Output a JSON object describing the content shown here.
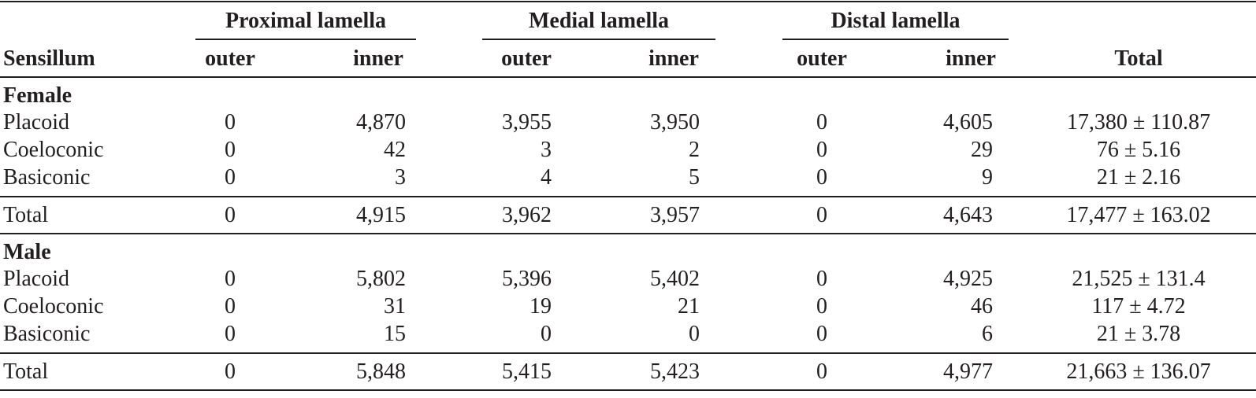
{
  "table": {
    "header": {
      "first_column": "Sensillum",
      "groups": [
        {
          "label": "Proximal lamella",
          "columns": [
            "outer",
            "inner"
          ]
        },
        {
          "label": "Medial lamella",
          "columns": [
            "outer",
            "inner"
          ]
        },
        {
          "label": "Distal lamella",
          "columns": [
            "outer",
            "inner"
          ]
        }
      ],
      "last_column": "Total"
    },
    "sections": [
      {
        "label": "Female",
        "rows": [
          [
            "Placoid",
            "0",
            "4,870",
            "3,955",
            "3,950",
            "0",
            "4,605",
            "17,380 ± 110.87"
          ],
          [
            "Coeloconic",
            "0",
            "42",
            "3",
            "2",
            "0",
            "29",
            "76 ± 5.16"
          ],
          [
            "Basiconic",
            "0",
            "3",
            "4",
            "5",
            "0",
            "9",
            "21 ± 2.16"
          ]
        ],
        "total": [
          "Total",
          "0",
          "4,915",
          "3,962",
          "3,957",
          "0",
          "4,643",
          "17,477 ± 163.02"
        ]
      },
      {
        "label": "Male",
        "rows": [
          [
            "Placoid",
            "0",
            "5,802",
            "5,396",
            "5,402",
            "0",
            "4,925",
            "21,525 ± 131.4"
          ],
          [
            "Coeloconic",
            "0",
            "31",
            "19",
            "21",
            "0",
            "46",
            "117 ± 4.72"
          ],
          [
            "Basiconic",
            "0",
            "15",
            "0",
            "0",
            "0",
            "6",
            "21 ± 3.78"
          ]
        ],
        "total": [
          "Total",
          "0",
          "5,848",
          "5,415",
          "5,423",
          "0",
          "4,977",
          "21,663 ± 136.07"
        ]
      }
    ]
  }
}
